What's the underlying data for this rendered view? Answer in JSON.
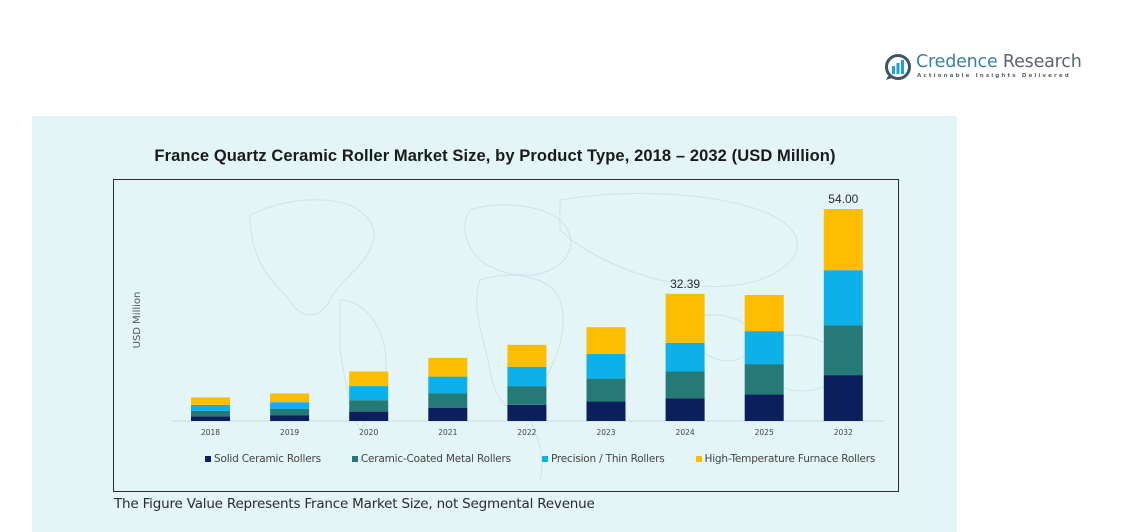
{
  "brand": {
    "name_part1": "Credence",
    "name_part2": " Research",
    "tagline": "Actionable Insights Delivered",
    "icon": "bar-chart-logo-icon"
  },
  "footnote": "The Figure Value Represents France Market Size, not Segmental Revenue",
  "colors": {
    "background_panel": "#e3f5f6",
    "solid_ceramic": "#0a1f5c",
    "ceramic_coated": "#257a78",
    "precision_thin": "#0eb0ea",
    "high_temp": "#fdbd00"
  },
  "chart_data": {
    "type": "bar",
    "stacked": true,
    "title": "France Quartz Ceramic Roller Market Size, by Product Type, 2018 – 2032 (USD Million)",
    "xlabel": "",
    "ylabel": "USD Million",
    "grid": false,
    "legend_position": "bottom",
    "categories": [
      "2018",
      "2019",
      "2020",
      "2021",
      "2022",
      "2023",
      "2024",
      "2025",
      "2032"
    ],
    "series": [
      {
        "name": "Solid Ceramic Rollers",
        "color": "#0a1f5c",
        "values": [
          1.2,
          1.4,
          2.4,
          3.3,
          4.1,
          5.0,
          5.8,
          6.8,
          11.7
        ]
      },
      {
        "name": "Ceramic-Coated Metal Rollers",
        "color": "#257a78",
        "values": [
          1.4,
          1.7,
          2.9,
          3.7,
          4.8,
          5.8,
          6.8,
          7.7,
          12.7
        ]
      },
      {
        "name": "Precision / Thin Rollers",
        "color": "#0eb0ea",
        "values": [
          1.5,
          1.7,
          3.6,
          4.3,
          4.9,
          6.3,
          7.3,
          8.4,
          14.0
        ]
      },
      {
        "name": "High-Temperature Furnace Rollers",
        "color": "#fdbd00",
        "values": [
          1.9,
          2.2,
          3.7,
          4.8,
          5.6,
          6.8,
          12.49,
          9.2,
          15.6
        ]
      }
    ],
    "totals": [
      6.0,
      7.0,
      12.6,
      16.1,
      19.4,
      23.9,
      32.39,
      32.1,
      54.0
    ],
    "data_labels": [
      {
        "category": "2024",
        "text": "32.39"
      },
      {
        "category": "2032",
        "text": "54.00"
      }
    ],
    "ylim": [
      0,
      58
    ]
  }
}
